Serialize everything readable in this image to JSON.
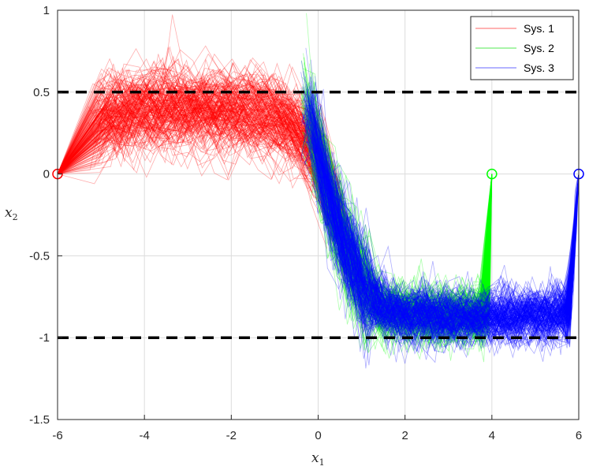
{
  "chart_data": {
    "type": "line",
    "title": "",
    "xlabel": "x",
    "xlabel_sub": "1",
    "ylabel": "x",
    "ylabel_sub": "2",
    "xlim": [
      -6,
      6
    ],
    "ylim": [
      -1.5,
      1
    ],
    "xticks": [
      -6,
      -4,
      -2,
      0,
      2,
      4,
      6
    ],
    "xtick_labels": [
      "-6",
      "-4",
      "-2",
      "0",
      "2",
      "4",
      "6"
    ],
    "yticks": [
      -1.5,
      -1,
      -0.5,
      0,
      0.5,
      1
    ],
    "ytick_labels": [
      "-1.5",
      "-1",
      "-0.5",
      "0",
      "0.5",
      "1"
    ],
    "grid": true,
    "legend_position": "top-right",
    "constraints": [
      {
        "y": 0.5,
        "style": "dashed",
        "color": "#000000"
      },
      {
        "y": -1,
        "style": "dashed",
        "color": "#000000"
      }
    ],
    "series": [
      {
        "name": "Sys. 1",
        "color": "#ff0000",
        "start": [
          -6,
          0
        ],
        "trajectories": 300,
        "mean_path": {
          "x": [
            -6,
            -5,
            -4,
            -3,
            -2,
            -1,
            -0.5,
            0,
            0.5,
            1,
            1.5,
            2,
            3,
            4,
            5,
            5.8,
            6
          ],
          "y": [
            0,
            0.33,
            0.4,
            0.4,
            0.38,
            0.35,
            0.28,
            0.1,
            -0.3,
            -0.65,
            -0.8,
            -0.85,
            -0.87,
            -0.87,
            -0.87,
            -0.85,
            0
          ]
        }
      },
      {
        "name": "Sys. 2",
        "color": "#00ff00",
        "start": [
          4,
          0
        ],
        "trajectories": 300,
        "mean_path": {
          "x": [
            -0.3,
            0,
            0.5,
            1,
            1.5,
            2,
            3,
            3.8,
            4,
            4
          ],
          "y": [
            0.4,
            0.1,
            -0.35,
            -0.68,
            -0.82,
            -0.85,
            -0.87,
            -0.85,
            -0.85,
            0
          ]
        }
      },
      {
        "name": "Sys. 3",
        "color": "#0000ff",
        "start": [
          6,
          0
        ],
        "trajectories": 300,
        "mean_path": {
          "x": [
            -0.2,
            0,
            0.5,
            1,
            1.5,
            2,
            3,
            4,
            5,
            5.8,
            6
          ],
          "y": [
            0.35,
            0.1,
            -0.35,
            -0.68,
            -0.82,
            -0.86,
            -0.88,
            -0.88,
            -0.87,
            -0.85,
            0
          ]
        }
      }
    ]
  }
}
